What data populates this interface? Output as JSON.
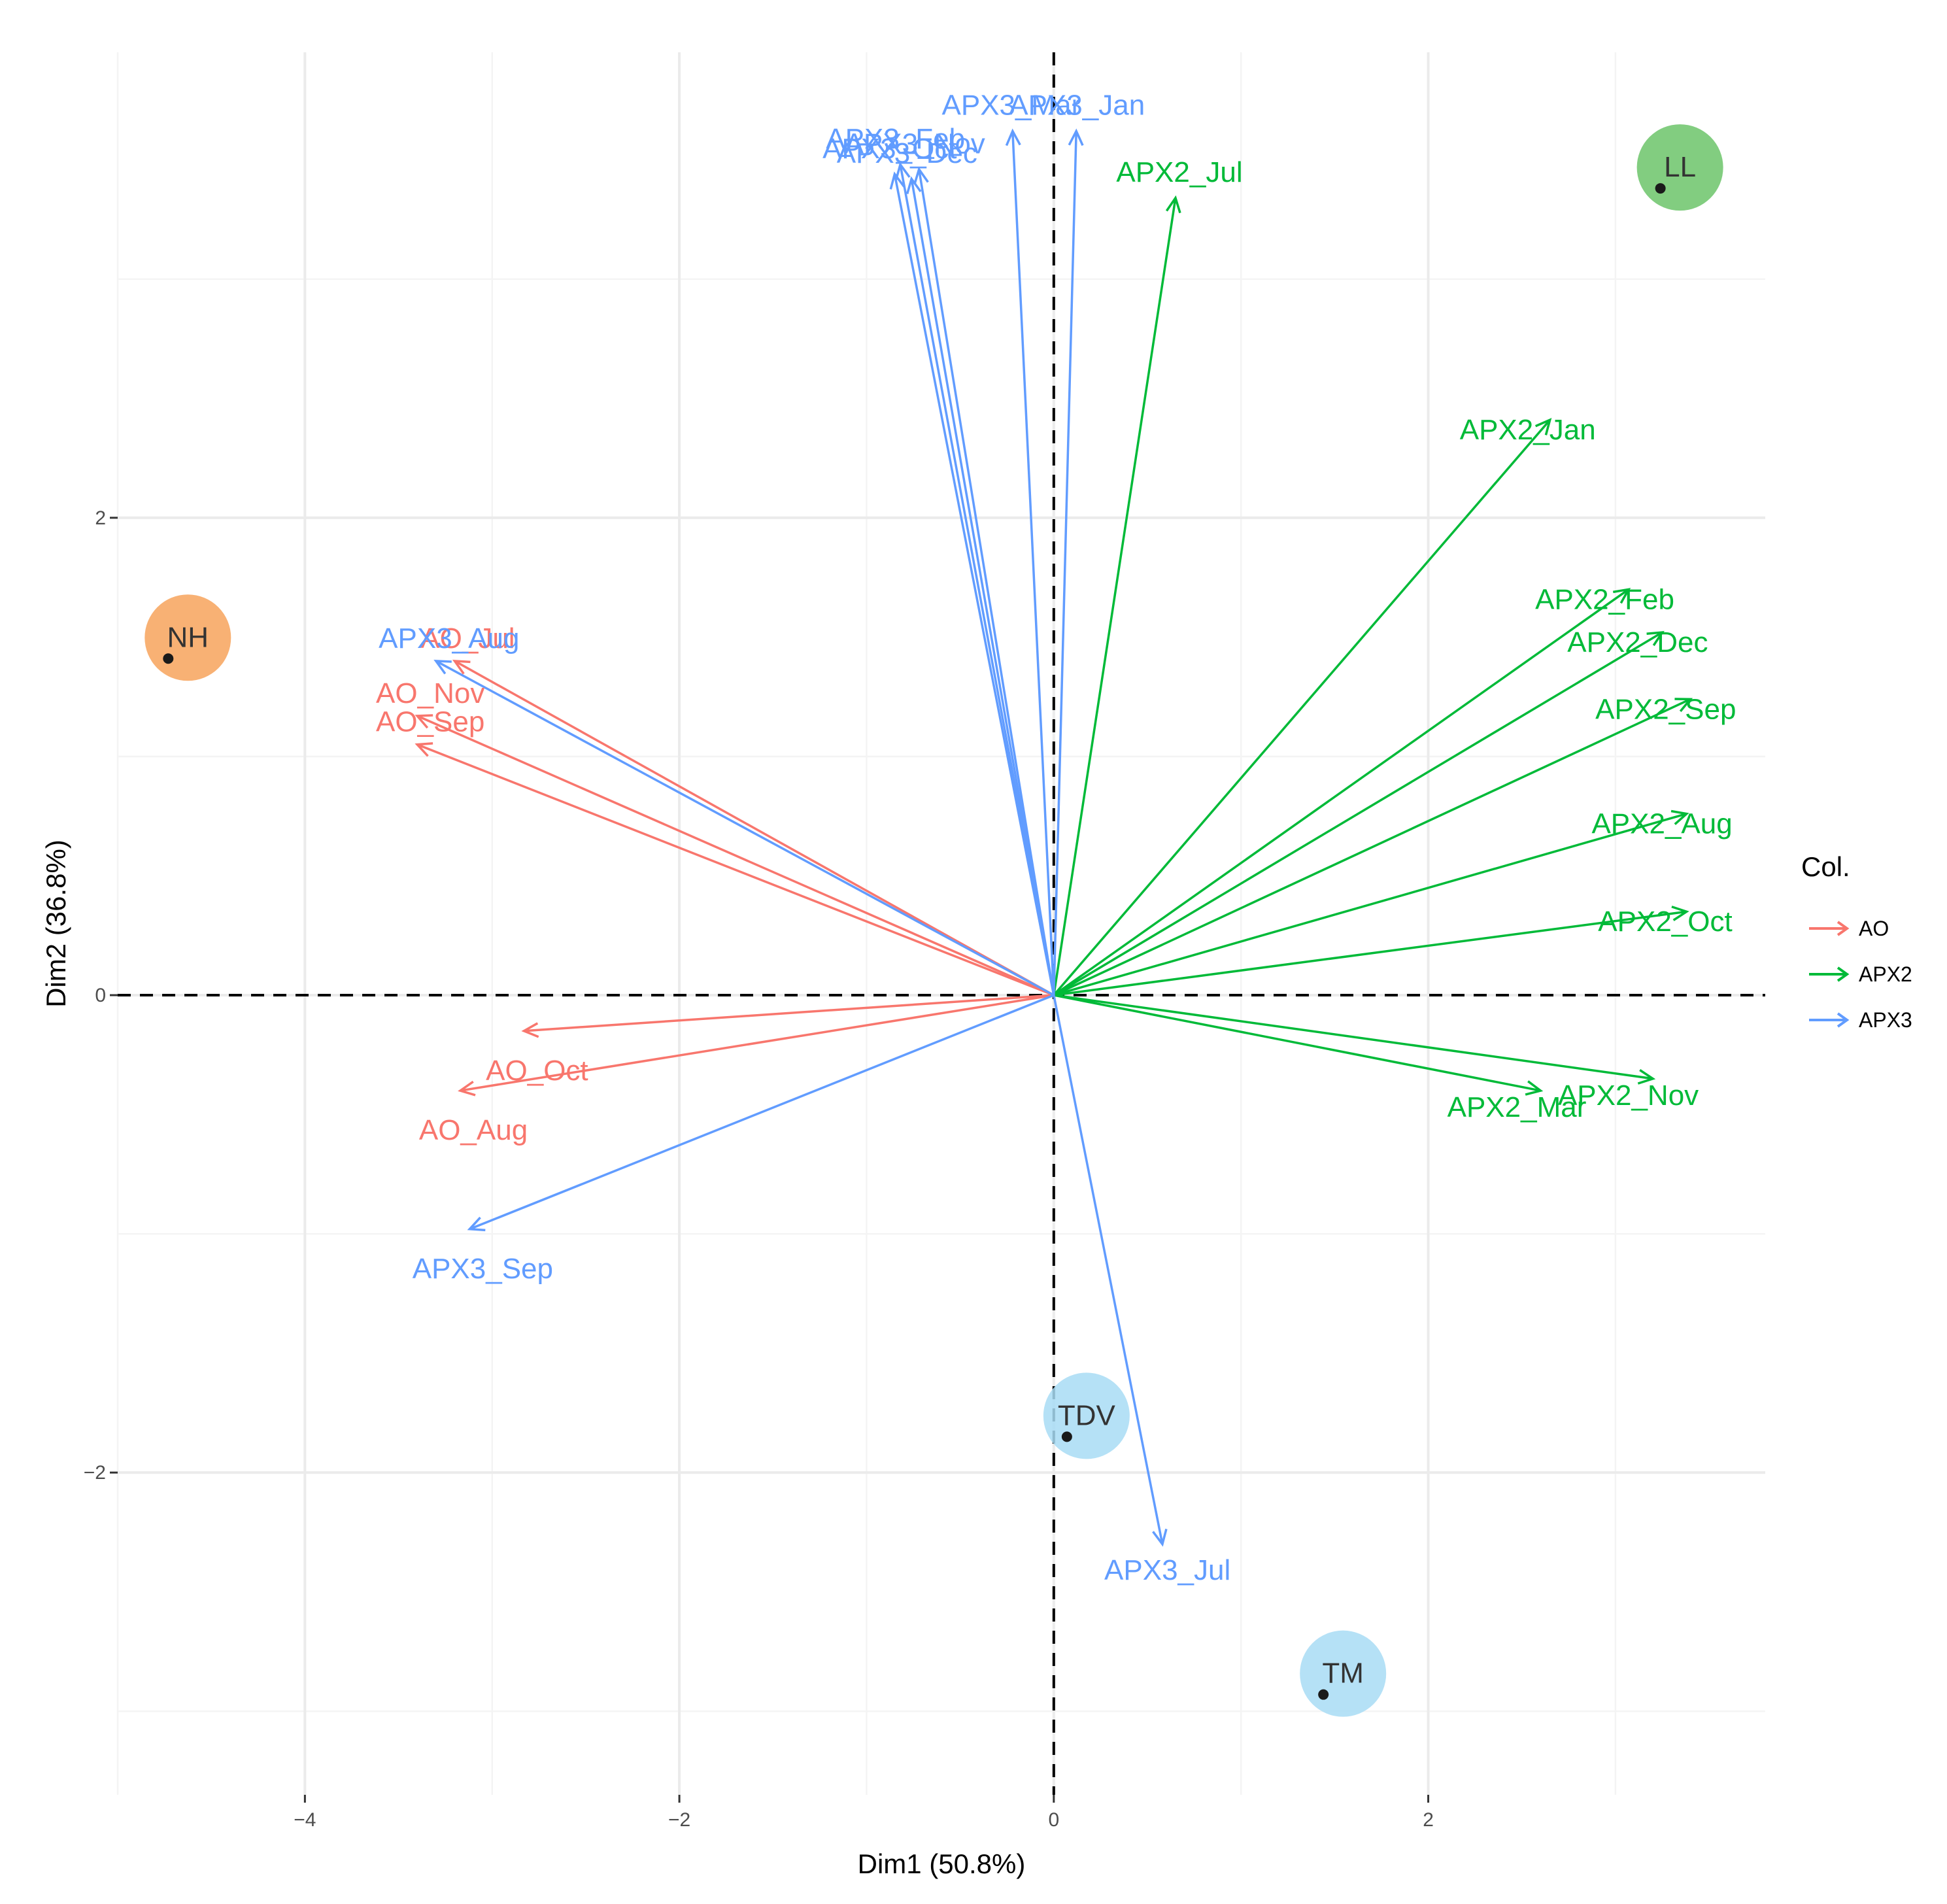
{
  "chart_data": {
    "type": "scatter",
    "subtype": "pca-biplot",
    "xlabel": "Dim1 (50.8%)",
    "ylabel": "Dim2 (36.8%)",
    "xlim": [
      -5,
      3.8
    ],
    "ylim": [
      -3.35,
      3.95
    ],
    "x_ticks": [
      -4,
      -2,
      0,
      2
    ],
    "y_ticks": [
      -2,
      0,
      2
    ],
    "grid": true,
    "zero_lines": "dashed",
    "legend": {
      "title": "Col.",
      "position": "right",
      "entries": [
        {
          "label": "AO",
          "color": "#F8766D"
        },
        {
          "label": "APX2",
          "color": "#00BA38"
        },
        {
          "label": "APX3",
          "color": "#619CFF"
        }
      ]
    },
    "points": [
      {
        "label": "NH",
        "x": -4.73,
        "y": 1.41,
        "halo": "#f7a35c"
      },
      {
        "label": "LL",
        "x": 3.24,
        "y": 3.38,
        "halo": "#6cc46a"
      },
      {
        "label": "TDV",
        "x": 0.07,
        "y": -1.85,
        "halo": "#a8dcf4"
      },
      {
        "label": "TM",
        "x": 1.44,
        "y": -2.93,
        "halo": "#a8dcf4"
      }
    ],
    "series": [
      {
        "name": "AO",
        "color": "#F8766D",
        "vectors": [
          {
            "label": "AO_Jul",
            "x": -3.2,
            "y": 1.4
          },
          {
            "label": "AO_Nov",
            "x": -3.4,
            "y": 1.17
          },
          {
            "label": "AO_Sep",
            "x": -3.4,
            "y": 1.05
          },
          {
            "label": "AO_Oct",
            "x": -2.83,
            "y": -0.15
          },
          {
            "label": "AO_Aug",
            "x": -3.17,
            "y": -0.4
          }
        ]
      },
      {
        "name": "APX2",
        "color": "#00BA38",
        "vectors": [
          {
            "label": "APX2_Jul",
            "x": 0.65,
            "y": 3.34
          },
          {
            "label": "APX2_Jan",
            "x": 2.65,
            "y": 2.41
          },
          {
            "label": "APX2_Feb",
            "x": 3.07,
            "y": 1.7
          },
          {
            "label": "APX2_Dec",
            "x": 3.25,
            "y": 1.52
          },
          {
            "label": "APX2_Sep",
            "x": 3.4,
            "y": 1.24
          },
          {
            "label": "APX2_Aug",
            "x": 3.38,
            "y": 0.76
          },
          {
            "label": "APX2_Oct",
            "x": 3.38,
            "y": 0.35
          },
          {
            "label": "APX2_Nov",
            "x": 3.2,
            "y": -0.35
          },
          {
            "label": "APX2_Mar",
            "x": 2.6,
            "y": -0.4
          }
        ]
      },
      {
        "name": "APX3",
        "color": "#619CFF",
        "vectors": [
          {
            "label": "APX3_Mar",
            "x": -0.22,
            "y": 3.62
          },
          {
            "label": "APX3_Jan",
            "x": 0.12,
            "y": 3.62
          },
          {
            "label": "APX3_Feb",
            "x": -0.82,
            "y": 3.48
          },
          {
            "label": "APX3_Nov",
            "x": -0.72,
            "y": 3.46
          },
          {
            "label": "APX3_Oct",
            "x": -0.85,
            "y": 3.44
          },
          {
            "label": "APX3_Dec",
            "x": -0.76,
            "y": 3.42
          },
          {
            "label": "APX3_Aug",
            "x": -3.3,
            "y": 1.4
          },
          {
            "label": "APX3_Sep",
            "x": -3.12,
            "y": -0.98
          },
          {
            "label": "APX3_Jul",
            "x": 0.58,
            "y": -2.3
          }
        ]
      }
    ]
  }
}
